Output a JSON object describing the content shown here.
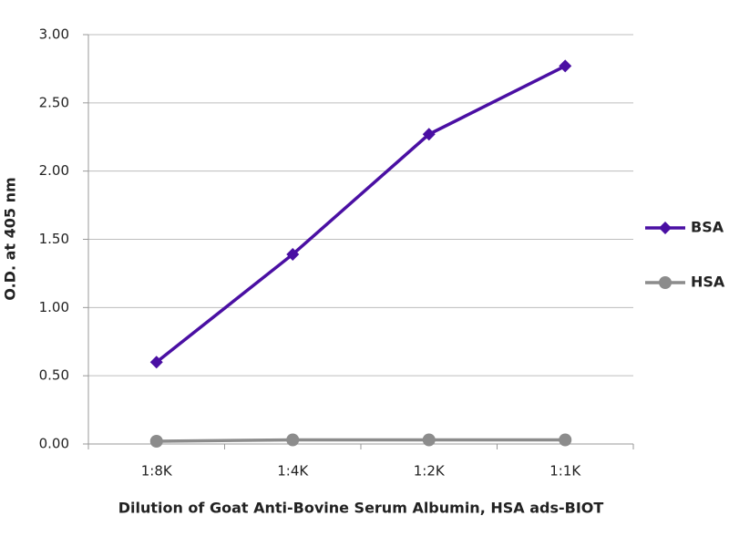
{
  "chart_data": {
    "type": "line",
    "x_label": "Dilution of Goat Anti-Bovine Serum Albumin, HSA ads-BIOT",
    "y_label": "O.D. at 405 nm",
    "categories": [
      "1:8K",
      "1:4K",
      "1:2K",
      "1:1K"
    ],
    "series": [
      {
        "name": "BSA",
        "color": "#4a0fa3",
        "marker": "diamond",
        "values": [
          0.6,
          1.39,
          2.27,
          2.77
        ]
      },
      {
        "name": "HSA",
        "color": "#8c8c8c",
        "marker": "circle",
        "values": [
          0.02,
          0.03,
          0.03,
          0.03
        ]
      }
    ],
    "ylim": [
      0,
      3
    ],
    "yticks": [
      {
        "value": 0,
        "label": "0.00"
      },
      {
        "value": 0.5,
        "label": "0.50"
      },
      {
        "value": 1,
        "label": "1.00"
      },
      {
        "value": 1.5,
        "label": "1.50"
      },
      {
        "value": 2,
        "label": "2.00"
      },
      {
        "value": 2.5,
        "label": "2.50"
      },
      {
        "value": 3,
        "label": "3.00"
      }
    ],
    "grid": true,
    "legend": "right"
  }
}
